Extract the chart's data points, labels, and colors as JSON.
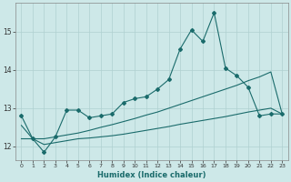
{
  "xlabel": "Humidex (Indice chaleur)",
  "x": [
    0,
    1,
    2,
    3,
    4,
    5,
    6,
    7,
    8,
    9,
    10,
    11,
    12,
    13,
    14,
    15,
    16,
    17,
    18,
    19,
    20,
    21,
    22,
    23
  ],
  "line1_y": [
    12.8,
    12.2,
    11.85,
    12.25,
    12.95,
    12.95,
    12.75,
    12.8,
    12.85,
    13.15,
    13.25,
    13.3,
    13.5,
    13.75,
    14.55,
    15.05,
    14.75,
    15.5,
    14.05,
    13.85,
    13.55,
    12.8,
    12.85,
    12.85
  ],
  "line2_y": [
    12.55,
    12.2,
    12.05,
    12.1,
    12.15,
    12.2,
    12.22,
    12.25,
    12.28,
    12.32,
    12.37,
    12.42,
    12.47,
    12.52,
    12.58,
    12.63,
    12.68,
    12.73,
    12.78,
    12.84,
    12.9,
    12.95,
    13.0,
    12.85
  ],
  "line3_y": [
    12.2,
    12.2,
    12.2,
    12.25,
    12.3,
    12.35,
    12.42,
    12.5,
    12.57,
    12.65,
    12.73,
    12.82,
    12.9,
    13.0,
    13.1,
    13.2,
    13.3,
    13.4,
    13.5,
    13.6,
    13.72,
    13.82,
    13.95,
    12.85
  ],
  "ylim": [
    11.65,
    15.75
  ],
  "xlim": [
    -0.5,
    23.5
  ],
  "yticks": [
    12,
    13,
    14,
    15
  ],
  "bg_color": "#cde8e8",
  "line_color": "#1a6b6b",
  "grid_color": "#afd0d0"
}
